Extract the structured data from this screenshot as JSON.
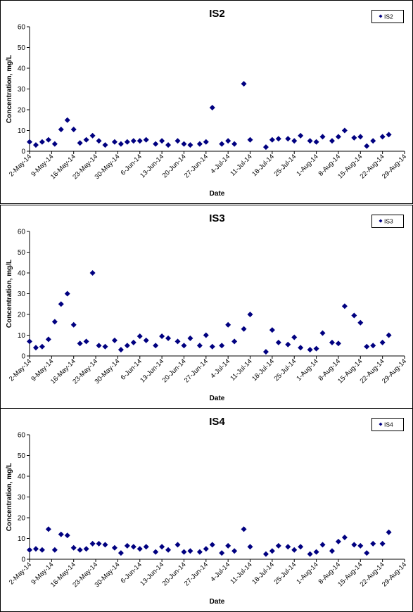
{
  "chart_data": [
    {
      "type": "scatter",
      "title": "IS2",
      "xlabel": "Date",
      "ylabel": "Concentration, mg/L",
      "ylim": [
        0,
        60
      ],
      "yticks": [
        "0",
        "10",
        "20",
        "30",
        "40",
        "50",
        "60"
      ],
      "xtick_labels": [
        "2-May-14",
        "9-May-14",
        "16-May-14",
        "23-May-14",
        "30-May-14",
        "6-Jun-14",
        "13-Jun-14",
        "20-Jun-14",
        "27-Jun-14",
        "4-Jul-14",
        "11-Jul-14",
        "18-Jul-14",
        "25-Jul-14",
        "1-Aug-14",
        "8-Aug-14",
        "15-Aug-14",
        "22-Aug-14",
        "29-Aug-14"
      ],
      "legend": "top-right",
      "grid": false,
      "marker_color": "#000080",
      "series": [
        {
          "name": "IS2",
          "points": [
            {
              "x": "2-May-14",
              "y": 4.5
            },
            {
              "x": "4-May-14",
              "y": 3
            },
            {
              "x": "6-May-14",
              "y": 4.5
            },
            {
              "x": "8-May-14",
              "y": 5.5
            },
            {
              "x": "10-May-14",
              "y": 3.5
            },
            {
              "x": "12-May-14",
              "y": 10.5
            },
            {
              "x": "14-May-14",
              "y": 15
            },
            {
              "x": "16-May-14",
              "y": 10.5
            },
            {
              "x": "18-May-14",
              "y": 4
            },
            {
              "x": "20-May-14",
              "y": 5.5
            },
            {
              "x": "22-May-14",
              "y": 7.5
            },
            {
              "x": "24-May-14",
              "y": 5
            },
            {
              "x": "26-May-14",
              "y": 3
            },
            {
              "x": "29-May-14",
              "y": 4.5
            },
            {
              "x": "31-May-14",
              "y": 3.5
            },
            {
              "x": "2-Jun-14",
              "y": 4.5
            },
            {
              "x": "4-Jun-14",
              "y": 5
            },
            {
              "x": "6-Jun-14",
              "y": 5
            },
            {
              "x": "8-Jun-14",
              "y": 5.5
            },
            {
              "x": "11-Jun-14",
              "y": 3.5
            },
            {
              "x": "13-Jun-14",
              "y": 5
            },
            {
              "x": "15-Jun-14",
              "y": 3
            },
            {
              "x": "18-Jun-14",
              "y": 5
            },
            {
              "x": "20-Jun-14",
              "y": 3.5
            },
            {
              "x": "22-Jun-14",
              "y": 3
            },
            {
              "x": "25-Jun-14",
              "y": 3.5
            },
            {
              "x": "27-Jun-14",
              "y": 4.5
            },
            {
              "x": "29-Jun-14",
              "y": 21
            },
            {
              "x": "2-Jul-14",
              "y": 3.5
            },
            {
              "x": "4-Jul-14",
              "y": 5
            },
            {
              "x": "6-Jul-14",
              "y": 3.5
            },
            {
              "x": "9-Jul-14",
              "y": 32.5
            },
            {
              "x": "11-Jul-14",
              "y": 5.5
            },
            {
              "x": "16-Jul-14",
              "y": 2
            },
            {
              "x": "18-Jul-14",
              "y": 5.5
            },
            {
              "x": "20-Jul-14",
              "y": 6
            },
            {
              "x": "23-Jul-14",
              "y": 6
            },
            {
              "x": "25-Jul-14",
              "y": 5
            },
            {
              "x": "27-Jul-14",
              "y": 7.5
            },
            {
              "x": "30-Jul-14",
              "y": 5
            },
            {
              "x": "1-Aug-14",
              "y": 4.5
            },
            {
              "x": "3-Aug-14",
              "y": 7
            },
            {
              "x": "6-Aug-14",
              "y": 5
            },
            {
              "x": "8-Aug-14",
              "y": 7
            },
            {
              "x": "10-Aug-14",
              "y": 10
            },
            {
              "x": "13-Aug-14",
              "y": 6.5
            },
            {
              "x": "15-Aug-14",
              "y": 7
            },
            {
              "x": "17-Aug-14",
              "y": 2.5
            },
            {
              "x": "19-Aug-14",
              "y": 5
            },
            {
              "x": "22-Aug-14",
              "y": 7
            },
            {
              "x": "24-Aug-14",
              "y": 8
            }
          ]
        }
      ]
    },
    {
      "type": "scatter",
      "title": "IS3",
      "xlabel": "Date",
      "ylabel": "Concentration, mg/L",
      "ylim": [
        0,
        60
      ],
      "yticks": [
        "0",
        "10",
        "20",
        "30",
        "40",
        "50",
        "60"
      ],
      "xtick_labels": [
        "2-May-14",
        "9-May-14",
        "16-May-14",
        "23-May-14",
        "30-May-14",
        "6-Jun-14",
        "13-Jun-14",
        "20-Jun-14",
        "27-Jun-14",
        "4-Jul-14",
        "11-Jul-14",
        "18-Jul-14",
        "25-Jul-14",
        "1-Aug-14",
        "8-Aug-14",
        "15-Aug-14",
        "22-Aug-14",
        "29-Aug-14"
      ],
      "legend": "top-right",
      "grid": false,
      "marker_color": "#000080",
      "series": [
        {
          "name": "IS3",
          "points": [
            {
              "x": "2-May-14",
              "y": 7
            },
            {
              "x": "4-May-14",
              "y": 4
            },
            {
              "x": "6-May-14",
              "y": 4.5
            },
            {
              "x": "8-May-14",
              "y": 8
            },
            {
              "x": "10-May-14",
              "y": 16.5
            },
            {
              "x": "12-May-14",
              "y": 25
            },
            {
              "x": "14-May-14",
              "y": 30
            },
            {
              "x": "16-May-14",
              "y": 15
            },
            {
              "x": "18-May-14",
              "y": 6
            },
            {
              "x": "20-May-14",
              "y": 7
            },
            {
              "x": "22-May-14",
              "y": 40
            },
            {
              "x": "24-May-14",
              "y": 5
            },
            {
              "x": "26-May-14",
              "y": 4.5
            },
            {
              "x": "29-May-14",
              "y": 7.5
            },
            {
              "x": "31-May-14",
              "y": 3
            },
            {
              "x": "2-Jun-14",
              "y": 5
            },
            {
              "x": "4-Jun-14",
              "y": 6.5
            },
            {
              "x": "6-Jun-14",
              "y": 9.5
            },
            {
              "x": "8-Jun-14",
              "y": 7.5
            },
            {
              "x": "11-Jun-14",
              "y": 5
            },
            {
              "x": "13-Jun-14",
              "y": 9.5
            },
            {
              "x": "15-Jun-14",
              "y": 8.5
            },
            {
              "x": "18-Jun-14",
              "y": 7
            },
            {
              "x": "20-Jun-14",
              "y": 5
            },
            {
              "x": "22-Jun-14",
              "y": 8.5
            },
            {
              "x": "25-Jun-14",
              "y": 5
            },
            {
              "x": "27-Jun-14",
              "y": 10
            },
            {
              "x": "29-Jun-14",
              "y": 4.5
            },
            {
              "x": "2-Jul-14",
              "y": 5
            },
            {
              "x": "4-Jul-14",
              "y": 15
            },
            {
              "x": "6-Jul-14",
              "y": 7
            },
            {
              "x": "9-Jul-14",
              "y": 13
            },
            {
              "x": "11-Jul-14",
              "y": 20
            },
            {
              "x": "16-Jul-14",
              "y": 2
            },
            {
              "x": "18-Jul-14",
              "y": 12.5
            },
            {
              "x": "20-Jul-14",
              "y": 6.5
            },
            {
              "x": "23-Jul-14",
              "y": 5.5
            },
            {
              "x": "25-Jul-14",
              "y": 9
            },
            {
              "x": "27-Jul-14",
              "y": 4
            },
            {
              "x": "30-Jul-14",
              "y": 3
            },
            {
              "x": "1-Aug-14",
              "y": 3.5
            },
            {
              "x": "3-Aug-14",
              "y": 11
            },
            {
              "x": "6-Aug-14",
              "y": 6.5
            },
            {
              "x": "8-Aug-14",
              "y": 6
            },
            {
              "x": "10-Aug-14",
              "y": 24
            },
            {
              "x": "13-Aug-14",
              "y": 19.5
            },
            {
              "x": "15-Aug-14",
              "y": 16
            },
            {
              "x": "17-Aug-14",
              "y": 4.5
            },
            {
              "x": "19-Aug-14",
              "y": 5
            },
            {
              "x": "22-Aug-14",
              "y": 6.5
            },
            {
              "x": "24-Aug-14",
              "y": 10
            }
          ]
        }
      ]
    },
    {
      "type": "scatter",
      "title": "IS4",
      "xlabel": "Date",
      "ylabel": "Concentration, mg/L",
      "ylim": [
        0,
        60
      ],
      "yticks": [
        "0",
        "10",
        "20",
        "30",
        "40",
        "50",
        "60"
      ],
      "xtick_labels": [
        "2-May-14",
        "9-May-14",
        "16-May-14",
        "23-May-14",
        "30-May-14",
        "6-Jun-14",
        "13-Jun-14",
        "20-Jun-14",
        "27-Jun-14",
        "4-Jul-14",
        "11-Jul-14",
        "18-Jul-14",
        "25-Jul-14",
        "1-Aug-14",
        "8-Aug-14",
        "15-Aug-14",
        "22-Aug-14",
        "29-Aug-14"
      ],
      "legend": "top-right",
      "grid": false,
      "marker_color": "#000080",
      "series": [
        {
          "name": "IS4",
          "points": [
            {
              "x": "2-May-14",
              "y": 4.5
            },
            {
              "x": "4-May-14",
              "y": 5
            },
            {
              "x": "6-May-14",
              "y": 4.5
            },
            {
              "x": "8-May-14",
              "y": 14.5
            },
            {
              "x": "10-May-14",
              "y": 4.5
            },
            {
              "x": "12-May-14",
              "y": 12
            },
            {
              "x": "14-May-14",
              "y": 11.5
            },
            {
              "x": "16-May-14",
              "y": 5.5
            },
            {
              "x": "18-May-14",
              "y": 4.5
            },
            {
              "x": "20-May-14",
              "y": 5
            },
            {
              "x": "22-May-14",
              "y": 7.5
            },
            {
              "x": "24-May-14",
              "y": 7.5
            },
            {
              "x": "26-May-14",
              "y": 7
            },
            {
              "x": "29-May-14",
              "y": 5.5
            },
            {
              "x": "31-May-14",
              "y": 3
            },
            {
              "x": "2-Jun-14",
              "y": 6.5
            },
            {
              "x": "4-Jun-14",
              "y": 6
            },
            {
              "x": "6-Jun-14",
              "y": 5
            },
            {
              "x": "8-Jun-14",
              "y": 6
            },
            {
              "x": "11-Jun-14",
              "y": 3.5
            },
            {
              "x": "13-Jun-14",
              "y": 6
            },
            {
              "x": "15-Jun-14",
              "y": 4.5
            },
            {
              "x": "18-Jun-14",
              "y": 7
            },
            {
              "x": "20-Jun-14",
              "y": 3.5
            },
            {
              "x": "22-Jun-14",
              "y": 4
            },
            {
              "x": "25-Jun-14",
              "y": 3.5
            },
            {
              "x": "27-Jun-14",
              "y": 5
            },
            {
              "x": "29-Jun-14",
              "y": 7
            },
            {
              "x": "2-Jul-14",
              "y": 3
            },
            {
              "x": "4-Jul-14",
              "y": 6.5
            },
            {
              "x": "6-Jul-14",
              "y": 4
            },
            {
              "x": "9-Jul-14",
              "y": 14.5
            },
            {
              "x": "11-Jul-14",
              "y": 6
            },
            {
              "x": "16-Jul-14",
              "y": 2.5
            },
            {
              "x": "18-Jul-14",
              "y": 4
            },
            {
              "x": "20-Jul-14",
              "y": 6.5
            },
            {
              "x": "23-Jul-14",
              "y": 6
            },
            {
              "x": "25-Jul-14",
              "y": 4.5
            },
            {
              "x": "27-Jul-14",
              "y": 6
            },
            {
              "x": "30-Jul-14",
              "y": 2.5
            },
            {
              "x": "1-Aug-14",
              "y": 3.5
            },
            {
              "x": "3-Aug-14",
              "y": 7
            },
            {
              "x": "6-Aug-14",
              "y": 4
            },
            {
              "x": "8-Aug-14",
              "y": 8.5
            },
            {
              "x": "10-Aug-14",
              "y": 10.5
            },
            {
              "x": "13-Aug-14",
              "y": 7
            },
            {
              "x": "15-Aug-14",
              "y": 6.5
            },
            {
              "x": "17-Aug-14",
              "y": 3
            },
            {
              "x": "19-Aug-14",
              "y": 7.5
            },
            {
              "x": "22-Aug-14",
              "y": 7.5
            },
            {
              "x": "24-Aug-14",
              "y": 13
            }
          ]
        }
      ]
    }
  ]
}
